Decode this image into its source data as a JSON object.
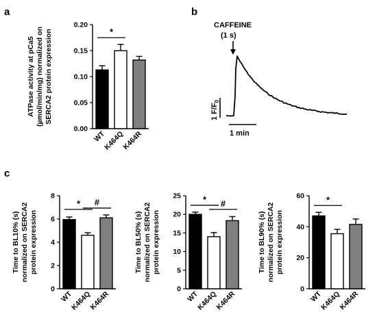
{
  "panel_letters": {
    "a": "a",
    "b": "b",
    "c": "c"
  },
  "trace": {
    "stimulus": "CAFFEINE",
    "duration": "(1 s)",
    "scale_y_main": "1 F/F",
    "scale_y_sub": "0",
    "scale_x": "1 min"
  },
  "colors": {
    "WT": "#000000",
    "K464Q": "#ffffff",
    "K464R": "#808080"
  },
  "chart_data": [
    {
      "id": "a",
      "type": "bar",
      "categories": [
        "WT",
        "K464Q",
        "K464R"
      ],
      "values": [
        0.113,
        0.15,
        0.132
      ],
      "errors": [
        0.008,
        0.012,
        0.007
      ],
      "ylabel_lines": [
        "ATPase activity at pCa5",
        "(µmol/min/mg) normalized on",
        "SERCA2 protein expression"
      ],
      "ylim": [
        0,
        0.2
      ],
      "yticks": [
        "0.00",
        "0.05",
        "0.10",
        "0.15",
        "0.20"
      ],
      "significance": [
        {
          "from": 0,
          "to": 1,
          "label": "*"
        }
      ]
    },
    {
      "id": "c1",
      "type": "bar",
      "categories": [
        "WT",
        "K464Q",
        "K464R"
      ],
      "values": [
        5.95,
        4.6,
        6.1
      ],
      "errors": [
        0.22,
        0.22,
        0.25
      ],
      "ylabel_lines": [
        "Time to BL10% (s)",
        "normalized on SERCA2",
        "protein expression"
      ],
      "ylim": [
        0,
        8
      ],
      "yticks": [
        "0",
        "2",
        "4",
        "6",
        "8"
      ],
      "significance": [
        {
          "from": 0,
          "to": 1,
          "label": "*"
        },
        {
          "from": 1,
          "to": 2,
          "label": "#"
        }
      ]
    },
    {
      "id": "c2",
      "type": "bar",
      "categories": [
        "WT",
        "K464Q",
        "K464R"
      ],
      "values": [
        20.0,
        14.0,
        18.3
      ],
      "errors": [
        0.6,
        1.1,
        1.1
      ],
      "ylabel_lines": [
        "Time to BL50% (s)",
        "normalized on SERCA2",
        "protein expression"
      ],
      "ylim": [
        0,
        25
      ],
      "yticks": [
        "0",
        "5",
        "10",
        "15",
        "20",
        "25"
      ],
      "significance": [
        {
          "from": 0,
          "to": 1,
          "label": "*"
        },
        {
          "from": 1,
          "to": 2,
          "label": "#"
        }
      ]
    },
    {
      "id": "c3",
      "type": "bar",
      "categories": [
        "WT",
        "K464Q",
        "K464R"
      ],
      "values": [
        47.0,
        35.5,
        41.5
      ],
      "errors": [
        2.3,
        2.8,
        3.5
      ],
      "ylabel_lines": [
        "Time to BL90% (s)",
        "normalized on SERCA2",
        "protein expression"
      ],
      "ylim": [
        0,
        60
      ],
      "yticks": [
        "0",
        "20",
        "40",
        "60"
      ],
      "significance": [
        {
          "from": 0,
          "to": 1,
          "label": "*"
        }
      ]
    }
  ]
}
